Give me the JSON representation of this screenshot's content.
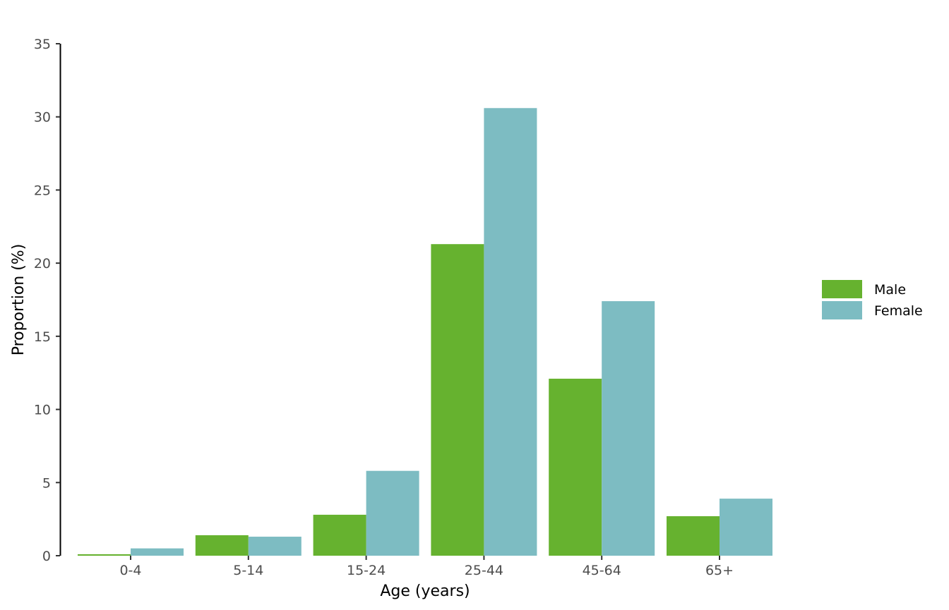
{
  "chart_data": {
    "type": "bar",
    "categories": [
      "0-4",
      "5-14",
      "15-24",
      "25-44",
      "45-64",
      "65+"
    ],
    "series": [
      {
        "name": "Male",
        "color": "#66b22f",
        "values": [
          0.1,
          1.4,
          2.8,
          21.3,
          12.1,
          2.7
        ]
      },
      {
        "name": "Female",
        "color": "#7dbcc2",
        "values": [
          0.5,
          1.3,
          5.8,
          30.6,
          17.4,
          3.9
        ]
      }
    ],
    "xlabel": "Age (years)",
    "ylabel": "Proportion (%)",
    "ylim": [
      0,
      35
    ],
    "yticks": [
      "0",
      "5",
      "10",
      "15",
      "20",
      "25",
      "30",
      "35"
    ],
    "grid": false,
    "legend_position": "right"
  }
}
